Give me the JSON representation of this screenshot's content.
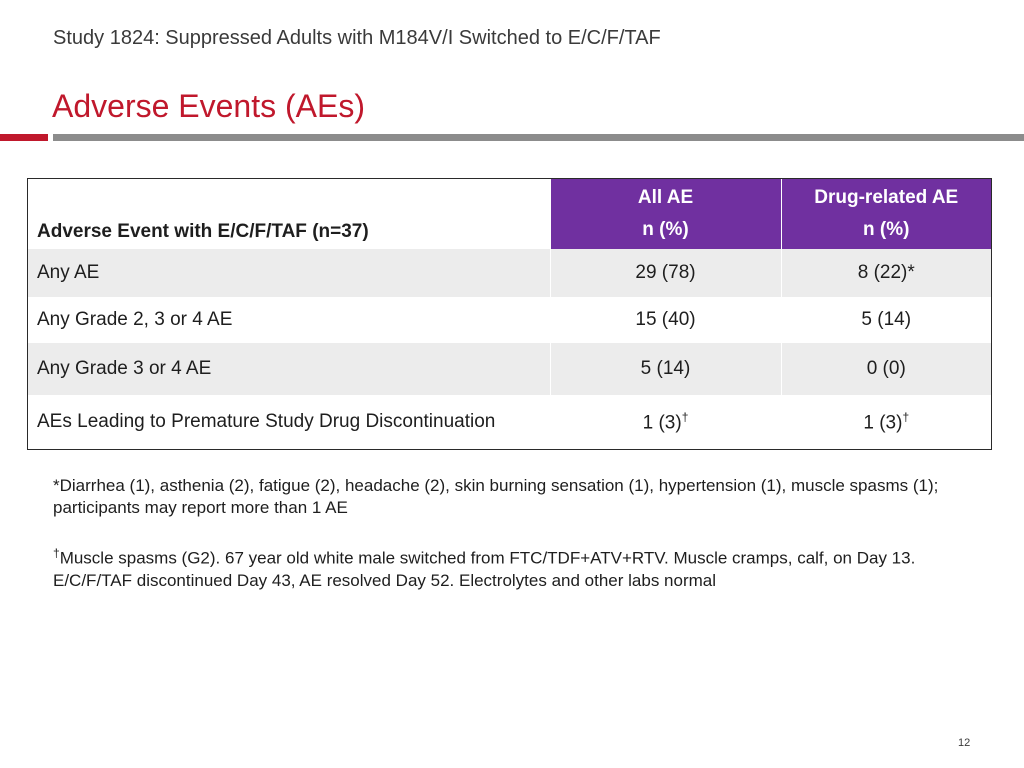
{
  "header": {
    "subtitle": "Study 1824: Suppressed Adults with M184V/I Switched to E/C/F/TAF",
    "title": "Adverse Events (AEs)"
  },
  "colors": {
    "accent_red": "#c0182c",
    "header_purple": "#7030a0",
    "divider_gray": "#8c8c8c",
    "row_shade": "#ececec"
  },
  "table": {
    "row_header": "Adverse Event with E/C/F/TAF (n=37)",
    "columns": [
      {
        "line1": "All AE",
        "line2": "n (%)"
      },
      {
        "line1": "Drug-related AE",
        "line2": "n (%)"
      }
    ],
    "rows": [
      {
        "label": "Any AE",
        "all_ae": "29 (78)",
        "drug_related": "8 (22)*",
        "all_ae_sup": "",
        "drug_related_sup": ""
      },
      {
        "label": "Any Grade 2, 3 or 4 AE",
        "all_ae": "15 (40)",
        "drug_related": "5 (14)",
        "all_ae_sup": "",
        "drug_related_sup": ""
      },
      {
        "label": "Any Grade 3 or 4 AE",
        "all_ae": "5 (14)",
        "drug_related": "0 (0)",
        "all_ae_sup": "",
        "drug_related_sup": ""
      },
      {
        "label": "AEs Leading to Premature Study Drug Discontinuation",
        "all_ae": "1 (3)",
        "drug_related": "1 (3)",
        "all_ae_sup": "†",
        "drug_related_sup": "†"
      }
    ]
  },
  "footnotes": {
    "fn1": "*Diarrhea (1), asthenia (2), fatigue (2), headache (2), skin burning sensation (1), hypertension (1), muscle spasms (1); participants may report more than 1 AE",
    "fn2_mark": "†",
    "fn2": "Muscle spasms (G2). 67 year old white male switched from FTC/TDF+ATV+RTV. Muscle cramps, calf, on Day 13. E/C/F/TAF discontinued Day 43, AE resolved Day 52. Electrolytes and other labs normal"
  },
  "page_number": "12"
}
